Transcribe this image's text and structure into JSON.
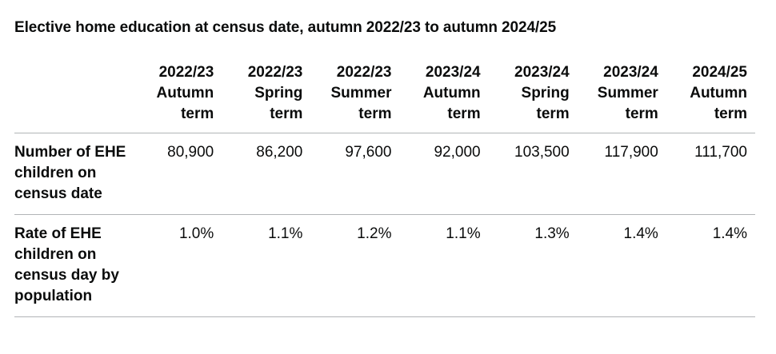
{
  "caption": "Elective home education at census date, autumn 2022/23 to autumn 2024/25",
  "columns": [
    {
      "year": "2022/23",
      "term": "Autumn",
      "suffix": "term"
    },
    {
      "year": "2022/23",
      "term": "Spring",
      "suffix": "term"
    },
    {
      "year": "2022/23",
      "term": "Summer",
      "suffix": "term"
    },
    {
      "year": "2023/24",
      "term": "Autumn",
      "suffix": "term"
    },
    {
      "year": "2023/24",
      "term": "Spring",
      "suffix": "term"
    },
    {
      "year": "2023/24",
      "term": "Summer",
      "suffix": "term"
    },
    {
      "year": "2024/25",
      "term": "Autumn",
      "suffix": "term"
    }
  ],
  "rows": [
    {
      "label": "Number of EHE children on census date",
      "values": [
        "80,900",
        "86,200",
        "97,600",
        "92,000",
        "103,500",
        "117,900",
        "111,700"
      ]
    },
    {
      "label": "Rate of EHE children on census day by population",
      "values": [
        "1.0%",
        "1.1%",
        "1.2%",
        "1.1%",
        "1.3%",
        "1.4%",
        "1.4%"
      ]
    }
  ]
}
